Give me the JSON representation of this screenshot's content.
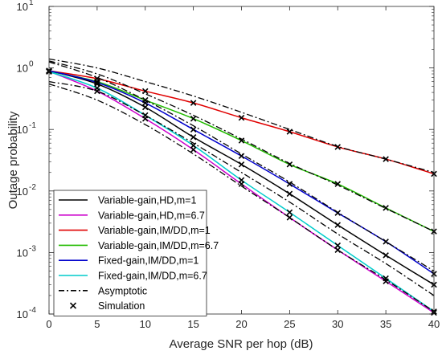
{
  "chart_data": {
    "type": "line",
    "xlabel": "Average SNR per hop (dB)",
    "ylabel": "Outage probability",
    "xlim": [
      0,
      40
    ],
    "ylim": [
      0.0001,
      10
    ],
    "yscale": "log",
    "grid": false,
    "legend_position": "bottom-left",
    "x_ticks": [
      0,
      5,
      10,
      15,
      20,
      25,
      30,
      35,
      40
    ],
    "x_tick_labels": [
      "0",
      "5",
      "10",
      "15",
      "20",
      "25",
      "30",
      "35",
      "40"
    ],
    "y_ticks": [
      0.0001,
      0.001,
      0.01,
      0.1,
      1,
      10
    ],
    "y_tick_labels": [
      {
        "base": "10",
        "exp": "-4"
      },
      {
        "base": "10",
        "exp": "-3"
      },
      {
        "base": "10",
        "exp": "-2"
      },
      {
        "base": "10",
        "exp": "-1"
      },
      {
        "base": "10",
        "exp": "0"
      },
      {
        "base": "10",
        "exp": "1"
      }
    ],
    "series": [
      {
        "name": "Variable-gain,HD,m=1",
        "color": "#000000",
        "style": "solid",
        "x": [
          0,
          5,
          10,
          15,
          20,
          25,
          30,
          35,
          40
        ],
        "y": [
          0.9,
          0.55,
          0.23,
          0.075,
          0.027,
          0.009,
          0.0028,
          0.0009,
          0.0003
        ]
      },
      {
        "name": "Variable-gain,HD,m=6.7",
        "color": "#cc00cc",
        "style": "solid",
        "x": [
          0,
          5,
          10,
          15,
          20,
          25,
          30,
          35,
          40
        ],
        "y": [
          0.88,
          0.42,
          0.15,
          0.047,
          0.013,
          0.0037,
          0.0011,
          0.00034,
          0.000105
        ]
      },
      {
        "name": "Variable-gain,IM/DD,m=1",
        "color": "#e00000",
        "style": "solid",
        "x": [
          0,
          5,
          10,
          15,
          20,
          25,
          30,
          35,
          40
        ],
        "y": [
          0.9,
          0.67,
          0.42,
          0.27,
          0.155,
          0.092,
          0.052,
          0.033,
          0.019
        ]
      },
      {
        "name": "Variable-gain,IM/DD,m=6.7",
        "color": "#22bb00",
        "style": "solid",
        "x": [
          0,
          5,
          10,
          15,
          20,
          25,
          30,
          35,
          40
        ],
        "y": [
          0.88,
          0.6,
          0.3,
          0.15,
          0.066,
          0.027,
          0.013,
          0.0053,
          0.0022
        ]
      },
      {
        "name": "Fixed-gain,IM/DD,m=1",
        "color": "#0000cc",
        "style": "solid",
        "x": [
          0,
          5,
          10,
          15,
          20,
          25,
          30,
          35,
          40
        ],
        "y": [
          0.9,
          0.58,
          0.27,
          0.1,
          0.037,
          0.013,
          0.0044,
          0.0015,
          0.00045
        ]
      },
      {
        "name": "Fixed-gain,IM/DD,m=6.7",
        "color": "#00cccc",
        "style": "solid",
        "x": [
          0,
          5,
          10,
          15,
          20,
          25,
          30,
          35,
          40
        ],
        "y": [
          0.87,
          0.47,
          0.17,
          0.055,
          0.015,
          0.0045,
          0.0013,
          0.00038,
          0.00011
        ]
      },
      {
        "name": "Asymptotic",
        "color": "#000000",
        "style": "dashdot",
        "x": [
          0,
          5,
          10,
          15,
          20,
          25,
          30,
          35,
          40
        ],
        "y": [
          1.4,
          1.0,
          0.6,
          0.35,
          0.19,
          0.1,
          0.053,
          0.033,
          0.02
        ]
      },
      {
        "name": "",
        "color": "#000000",
        "style": "dashdot",
        "x": [
          0,
          5,
          10,
          15,
          20,
          25,
          30,
          35,
          40
        ],
        "y": [
          1.3,
          0.8,
          0.38,
          0.17,
          0.07,
          0.028,
          0.0125,
          0.0052,
          0.0022
        ]
      },
      {
        "name": "",
        "color": "#000000",
        "style": "dashdot",
        "x": [
          0,
          5,
          10,
          15,
          20,
          25,
          30,
          35,
          40
        ],
        "y": [
          1.25,
          0.7,
          0.3,
          0.115,
          0.04,
          0.014,
          0.0045,
          0.0015,
          0.0005
        ]
      },
      {
        "name": "",
        "color": "#000000",
        "style": "dashdot",
        "x": [
          0,
          5,
          10,
          15,
          20,
          25,
          30,
          35,
          40
        ],
        "y": [
          0.6,
          0.42,
          0.17,
          0.06,
          0.02,
          0.0066,
          0.002,
          0.00066,
          0.0002
        ]
      },
      {
        "name": "",
        "color": "#000000",
        "style": "dashdot",
        "x": [
          0,
          5,
          10,
          15,
          20,
          25,
          30,
          35,
          40
        ],
        "y": [
          0.55,
          0.3,
          0.12,
          0.04,
          0.012,
          0.0037,
          0.0011,
          0.00036,
          0.00011
        ]
      }
    ],
    "simulation_points": {
      "name": "Simulation",
      "marker": "x",
      "x": [
        0,
        5,
        10,
        15,
        20,
        25,
        30,
        35,
        40
      ],
      "y_sets": [
        [
          0.9,
          0.55,
          0.23,
          0.075,
          0.027,
          0.009,
          0.0028,
          0.0009,
          0.0003
        ],
        [
          0.88,
          0.42,
          0.15,
          0.047,
          0.013,
          0.0037,
          0.0011,
          0.00034,
          0.000105
        ],
        [
          0.9,
          0.67,
          0.42,
          0.27,
          0.155,
          0.092,
          0.052,
          0.033,
          0.019
        ],
        [
          0.88,
          0.6,
          0.3,
          0.15,
          0.066,
          0.027,
          0.013,
          0.0053,
          0.0022
        ],
        [
          0.9,
          0.58,
          0.27,
          0.1,
          0.037,
          0.013,
          0.0044,
          0.0015,
          0.00045
        ],
        [
          0.87,
          0.47,
          0.17,
          0.055,
          0.015,
          0.0045,
          0.0013,
          0.00038,
          0.00011
        ]
      ]
    },
    "legend": [
      {
        "label": "Variable-gain,HD,m=1",
        "color": "#000000",
        "kind": "solid"
      },
      {
        "label": "Variable-gain,HD,m=6.7",
        "color": "#cc00cc",
        "kind": "solid"
      },
      {
        "label": "Variable-gain,IM/DD,m=1",
        "color": "#e00000",
        "kind": "solid"
      },
      {
        "label": "Variable-gain,IM/DD,m=6.7",
        "color": "#22bb00",
        "kind": "solid"
      },
      {
        "label": "Fixed-gain,IM/DD,m=1",
        "color": "#0000cc",
        "kind": "solid"
      },
      {
        "label": "Fixed-gain,IM/DD,m=6.7",
        "color": "#00cccc",
        "kind": "solid"
      },
      {
        "label": "Asymptotic",
        "color": "#000000",
        "kind": "dashdot"
      },
      {
        "label": "Simulation",
        "color": "#000000",
        "kind": "marker-x"
      }
    ]
  }
}
